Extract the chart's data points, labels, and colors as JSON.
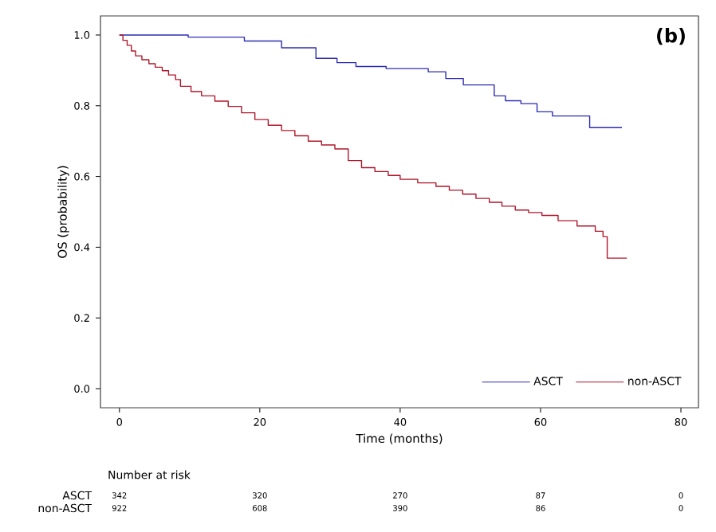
{
  "chart_data": {
    "type": "step",
    "xlabel": "Time (months)",
    "ylabel": "OS (probability)",
    "annotations": [
      "(b)",
      "Number at risk",
      "342",
      "320",
      "270",
      "87",
      "0",
      "922",
      "608",
      "390",
      "86",
      "0"
    ],
    "xlim": [
      -2.7,
      82.5
    ],
    "ylim": [
      -0.054,
      1.054
    ],
    "xticks": [
      0,
      20,
      40,
      60,
      80
    ],
    "yticks": [
      {
        "value": 0,
        "label": "0.0"
      },
      0.2,
      0.4,
      0.6,
      0.8,
      {
        "value": 1,
        "label": "1.0"
      }
    ],
    "legend": "bottom right",
    "series": [
      {
        "name": "ASCT",
        "color": "#2d2db4",
        "x": [
          0,
          9.8,
          17.8,
          23.1,
          28,
          31,
          33.7,
          38,
          44,
          46.5,
          49,
          53.4,
          55,
          57.2,
          59.5,
          61.7,
          67,
          71.6
        ],
        "values": [
          1.0,
          0.994,
          0.983,
          0.964,
          0.934,
          0.922,
          0.911,
          0.905,
          0.896,
          0.877,
          0.859,
          0.828,
          0.814,
          0.806,
          0.783,
          0.771,
          0.738,
          0.738
        ]
      },
      {
        "name": "non-ASCT",
        "color": "#b0172b",
        "x": [
          0,
          0.5,
          1.1,
          1.7,
          2.3,
          3.2,
          4.2,
          5.1,
          6.1,
          7,
          8,
          8.7,
          10.2,
          11.7,
          13.6,
          15.5,
          17.4,
          19.3,
          21.2,
          23.1,
          25,
          26.9,
          28.8,
          30.7,
          32.6,
          34.5,
          36.4,
          38.3,
          40,
          42.5,
          45.1,
          47,
          48.9,
          50.8,
          52.7,
          54.5,
          56.4,
          58.3,
          60.2,
          62.5,
          65.2,
          67.8,
          68.9,
          69.5,
          72.3
        ],
        "values": [
          1.0,
          0.985,
          0.971,
          0.955,
          0.941,
          0.93,
          0.919,
          0.909,
          0.899,
          0.887,
          0.874,
          0.855,
          0.84,
          0.828,
          0.813,
          0.798,
          0.78,
          0.761,
          0.745,
          0.73,
          0.715,
          0.7,
          0.689,
          0.678,
          0.645,
          0.625,
          0.614,
          0.603,
          0.592,
          0.582,
          0.572,
          0.561,
          0.55,
          0.538,
          0.527,
          0.516,
          0.505,
          0.498,
          0.49,
          0.475,
          0.46,
          0.445,
          0.43,
          0.369,
          0.369
        ]
      }
    ]
  }
}
